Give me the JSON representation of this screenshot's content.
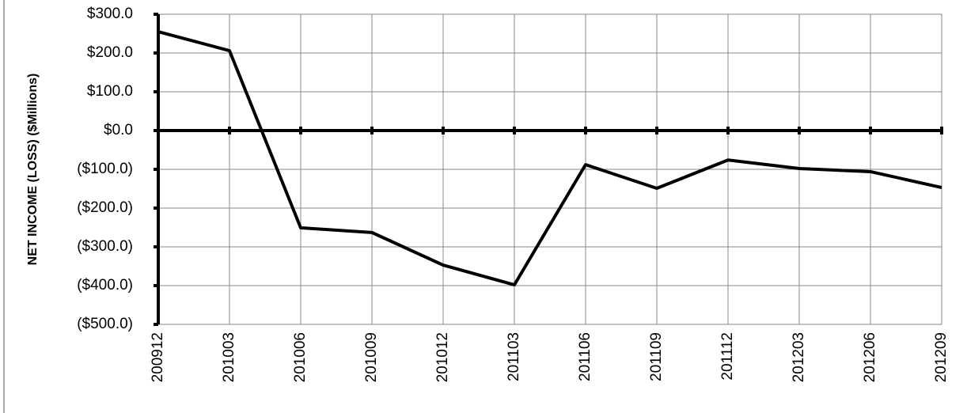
{
  "chart_data": {
    "type": "line",
    "y_label": "NET INCOME (LOSS) ($Millions)",
    "categories": [
      "200912",
      "201003",
      "201006",
      "201009",
      "201012",
      "201103",
      "201106",
      "201109",
      "201112",
      "201203",
      "201206",
      "201209"
    ],
    "series": [
      {
        "name": "Net income",
        "color": "#000000",
        "values": [
          255,
          206,
          -251,
          -263,
          -347,
          -398,
          -88,
          -149,
          -76,
          -98,
          -106,
          -147
        ]
      }
    ],
    "ylim": [
      -500,
      300
    ],
    "yticks": [
      {
        "value": -500,
        "label": "($500.0)"
      },
      {
        "value": -400,
        "label": "($400.0)"
      },
      {
        "value": -300,
        "label": "($300.0)"
      },
      {
        "value": -200,
        "label": "($200.0)"
      },
      {
        "value": -100,
        "label": "($100.0)"
      },
      {
        "value": 0,
        "label": "$0.0"
      },
      {
        "value": 100,
        "label": "$100.0"
      },
      {
        "value": 200,
        "label": "$200.0"
      },
      {
        "value": 300,
        "label": "$300.0"
      }
    ],
    "grid": true
  }
}
